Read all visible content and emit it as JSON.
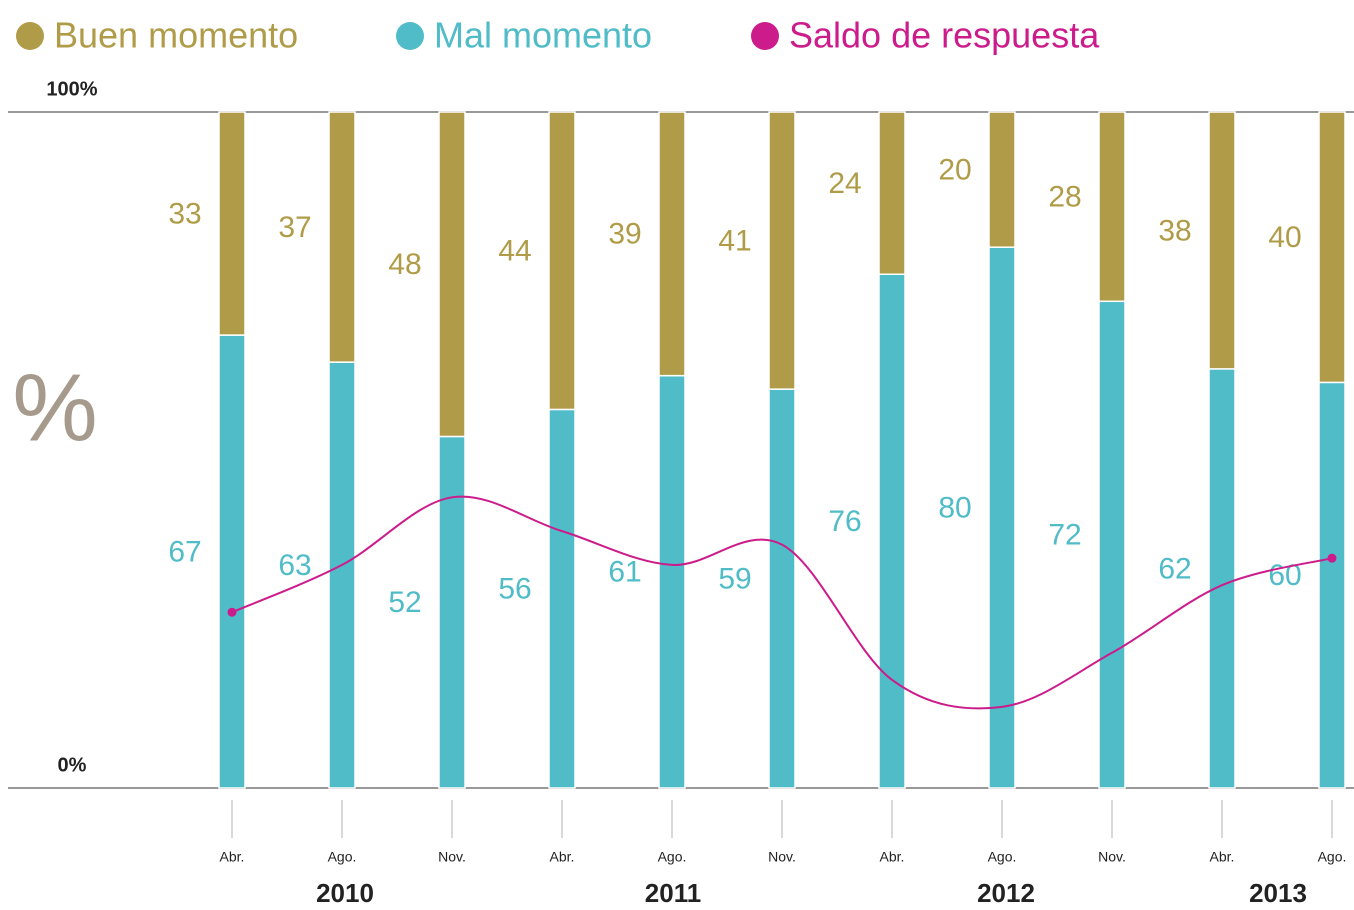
{
  "chart_data": {
    "type": "bar",
    "stacked": true,
    "categories": [
      "Abr.",
      "Ago.",
      "Nov.",
      "Abr.",
      "Ago.",
      "Nov.",
      "Abr.",
      "Ago.",
      "Nov.",
      "Abr.",
      "Ago."
    ],
    "years": [
      "2010",
      "2011",
      "2012",
      "2013"
    ],
    "y_label": "%",
    "ylim": [
      0,
      100
    ],
    "yticks": [
      {
        "value": 0,
        "label": "0%"
      },
      {
        "value": 100,
        "label": "100%"
      }
    ],
    "series": [
      {
        "name": "Buen momento",
        "color": "#b09c48",
        "values": [
          33,
          37,
          48,
          44,
          39,
          41,
          24,
          20,
          28,
          38,
          40
        ]
      },
      {
        "name": "Mal momento",
        "color": "#4fbcc8",
        "values": [
          67,
          63,
          52,
          56,
          61,
          59,
          76,
          80,
          72,
          62,
          60
        ]
      },
      {
        "name": "Saldo de respuesta",
        "color": "#cc1c8c",
        "type": "line",
        "values": [
          26,
          33,
          43,
          38,
          33,
          36,
          16,
          12,
          20,
          30,
          34
        ]
      }
    ]
  }
}
